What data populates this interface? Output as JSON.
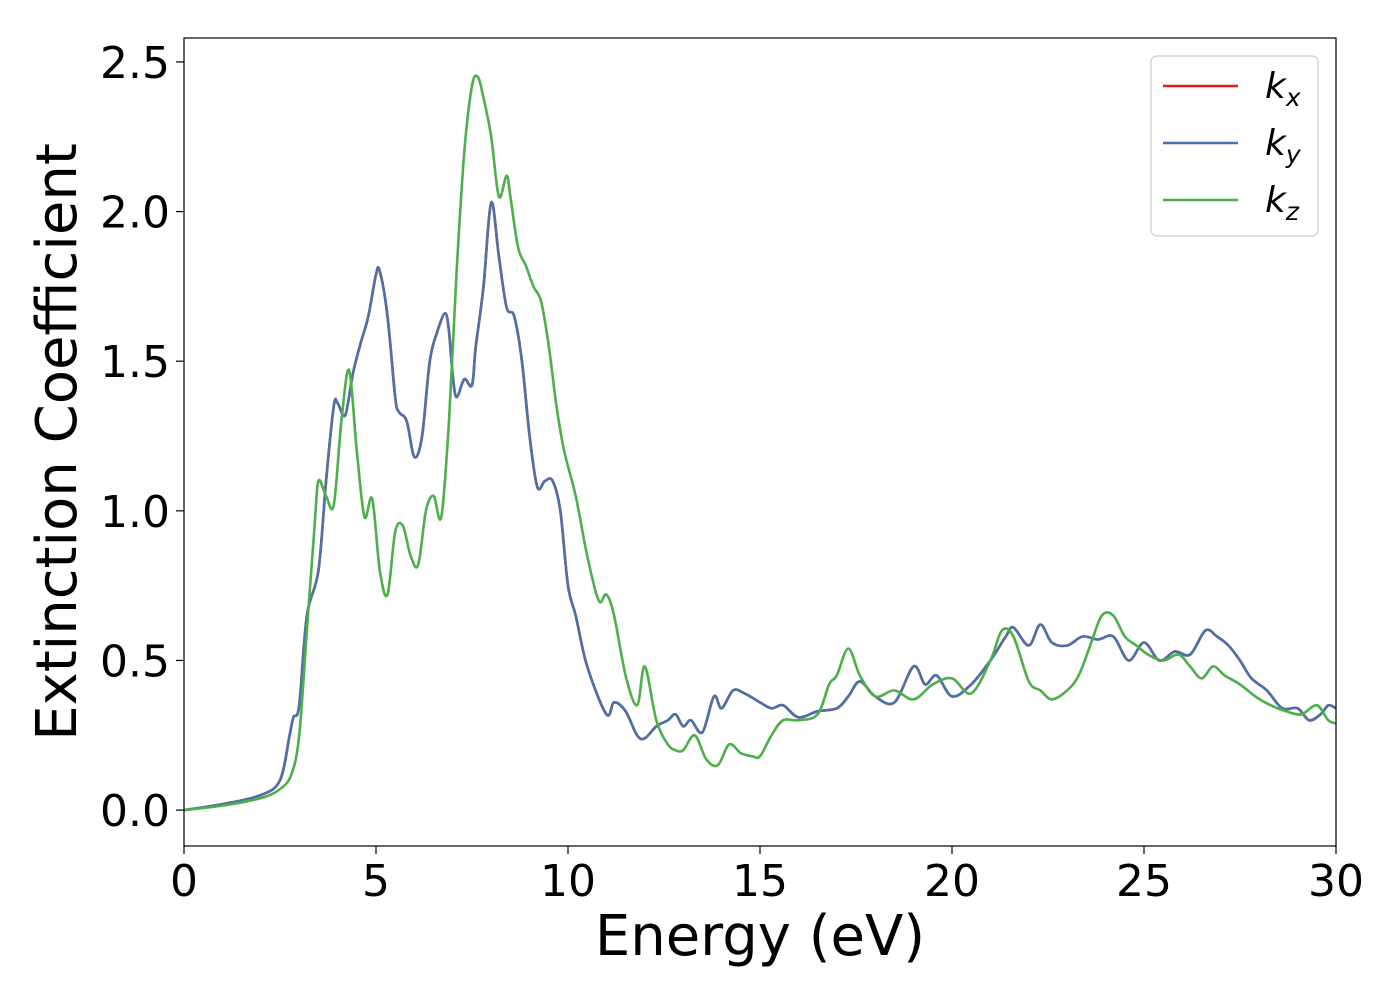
{
  "chart_data": {
    "type": "line",
    "title": "",
    "xlabel": "Energy (eV)",
    "ylabel": "Extinction Coefficient",
    "xlim": [
      0,
      30
    ],
    "ylim": [
      -0.12,
      2.58
    ],
    "xticks": [
      0,
      5,
      10,
      15,
      20,
      25,
      30
    ],
    "xtick_labels": [
      "0",
      "5",
      "10",
      "15",
      "20",
      "25",
      "30"
    ],
    "yticks": [
      0.0,
      0.5,
      1.0,
      1.5,
      2.0,
      2.5
    ],
    "ytick_labels": [
      "0.0",
      "0.5",
      "1.0",
      "1.5",
      "2.0",
      "2.5"
    ],
    "grid": false,
    "legend_position": "top-right",
    "series": [
      {
        "name": "k_x",
        "label_main": "k",
        "label_sub": "x",
        "color": "#e41a1c",
        "x": [
          0,
          1,
          2,
          2.5,
          2.75,
          2.85,
          3.0,
          3.2,
          3.5,
          3.7,
          3.9,
          4.0,
          4.2,
          4.4,
          4.6,
          4.8,
          5.0,
          5.1,
          5.3,
          5.5,
          5.6,
          5.8,
          6.0,
          6.2,
          6.4,
          6.6,
          6.8,
          6.9,
          7.0,
          7.1,
          7.3,
          7.5,
          7.6,
          7.8,
          8.0,
          8.2,
          8.4,
          8.6,
          8.8,
          9.0,
          9.2,
          9.4,
          9.6,
          9.8,
          10.0,
          10.2,
          10.5,
          11.0,
          11.2,
          11.5,
          11.8,
          12.0,
          12.3,
          12.6,
          12.8,
          13.0,
          13.2,
          13.5,
          13.8,
          14.0,
          14.3,
          14.6,
          15.0,
          15.3,
          15.6,
          16.0,
          16.5,
          17.0,
          17.3,
          17.6,
          18.0,
          18.5,
          19.0,
          19.3,
          19.6,
          20.0,
          20.5,
          21.0,
          21.4,
          21.6,
          22.0,
          22.3,
          22.6,
          23.0,
          23.4,
          23.8,
          24.2,
          24.6,
          25.0,
          25.4,
          25.8,
          26.2,
          26.6,
          26.9,
          27.2,
          27.5,
          27.8,
          28.2,
          28.6,
          29.0,
          29.3,
          29.6,
          29.8,
          30.0
        ],
        "y": [
          0.0,
          0.02,
          0.05,
          0.1,
          0.25,
          0.31,
          0.35,
          0.65,
          0.8,
          1.1,
          1.35,
          1.36,
          1.32,
          1.46,
          1.56,
          1.65,
          1.79,
          1.8,
          1.65,
          1.38,
          1.33,
          1.3,
          1.18,
          1.25,
          1.5,
          1.6,
          1.66,
          1.6,
          1.45,
          1.38,
          1.44,
          1.42,
          1.55,
          1.75,
          2.03,
          1.85,
          1.68,
          1.65,
          1.5,
          1.25,
          1.08,
          1.1,
          1.1,
          1.0,
          0.75,
          0.65,
          0.48,
          0.32,
          0.36,
          0.33,
          0.25,
          0.24,
          0.28,
          0.3,
          0.32,
          0.28,
          0.3,
          0.26,
          0.38,
          0.34,
          0.4,
          0.39,
          0.36,
          0.34,
          0.35,
          0.31,
          0.33,
          0.34,
          0.38,
          0.43,
          0.38,
          0.36,
          0.48,
          0.42,
          0.45,
          0.38,
          0.42,
          0.5,
          0.58,
          0.61,
          0.55,
          0.62,
          0.56,
          0.55,
          0.58,
          0.57,
          0.58,
          0.5,
          0.56,
          0.5,
          0.53,
          0.52,
          0.6,
          0.58,
          0.55,
          0.5,
          0.44,
          0.4,
          0.34,
          0.34,
          0.3,
          0.32,
          0.35,
          0.34
        ]
      },
      {
        "name": "k_y",
        "label_main": "k",
        "label_sub": "y",
        "color": "#4a72a8",
        "x": [
          0,
          1,
          2,
          2.5,
          2.75,
          2.85,
          3.0,
          3.2,
          3.5,
          3.7,
          3.9,
          4.0,
          4.2,
          4.4,
          4.6,
          4.8,
          5.0,
          5.1,
          5.3,
          5.5,
          5.6,
          5.8,
          6.0,
          6.2,
          6.4,
          6.6,
          6.8,
          6.9,
          7.0,
          7.1,
          7.3,
          7.5,
          7.6,
          7.8,
          8.0,
          8.2,
          8.4,
          8.6,
          8.8,
          9.0,
          9.2,
          9.4,
          9.6,
          9.8,
          10.0,
          10.2,
          10.5,
          11.0,
          11.2,
          11.5,
          11.8,
          12.0,
          12.3,
          12.6,
          12.8,
          13.0,
          13.2,
          13.5,
          13.8,
          14.0,
          14.3,
          14.6,
          15.0,
          15.3,
          15.6,
          16.0,
          16.5,
          17.0,
          17.3,
          17.6,
          18.0,
          18.5,
          19.0,
          19.3,
          19.6,
          20.0,
          20.5,
          21.0,
          21.4,
          21.6,
          22.0,
          22.3,
          22.6,
          23.0,
          23.4,
          23.8,
          24.2,
          24.6,
          25.0,
          25.4,
          25.8,
          26.2,
          26.6,
          26.9,
          27.2,
          27.5,
          27.8,
          28.2,
          28.6,
          29.0,
          29.3,
          29.6,
          29.8,
          30.0
        ],
        "y": [
          0.0,
          0.02,
          0.05,
          0.1,
          0.25,
          0.31,
          0.35,
          0.65,
          0.8,
          1.1,
          1.35,
          1.36,
          1.32,
          1.46,
          1.56,
          1.65,
          1.79,
          1.8,
          1.65,
          1.38,
          1.33,
          1.3,
          1.18,
          1.25,
          1.5,
          1.6,
          1.66,
          1.6,
          1.45,
          1.38,
          1.44,
          1.42,
          1.55,
          1.75,
          2.03,
          1.85,
          1.68,
          1.65,
          1.5,
          1.25,
          1.08,
          1.1,
          1.1,
          1.0,
          0.75,
          0.65,
          0.48,
          0.32,
          0.36,
          0.33,
          0.25,
          0.24,
          0.28,
          0.3,
          0.32,
          0.28,
          0.3,
          0.26,
          0.38,
          0.34,
          0.4,
          0.39,
          0.36,
          0.34,
          0.35,
          0.31,
          0.33,
          0.34,
          0.38,
          0.43,
          0.38,
          0.36,
          0.48,
          0.42,
          0.45,
          0.38,
          0.42,
          0.5,
          0.58,
          0.61,
          0.55,
          0.62,
          0.56,
          0.55,
          0.58,
          0.57,
          0.58,
          0.5,
          0.56,
          0.5,
          0.53,
          0.52,
          0.6,
          0.58,
          0.55,
          0.5,
          0.44,
          0.4,
          0.34,
          0.34,
          0.3,
          0.32,
          0.35,
          0.34
        ]
      },
      {
        "name": "k_z",
        "label_main": "k",
        "label_sub": "z",
        "color": "#4daf4a",
        "x": [
          0,
          1,
          2,
          2.5,
          2.8,
          3.0,
          3.2,
          3.4,
          3.5,
          3.7,
          3.9,
          4.1,
          4.3,
          4.5,
          4.7,
          4.9,
          5.1,
          5.3,
          5.5,
          5.7,
          5.9,
          6.1,
          6.3,
          6.5,
          6.7,
          6.9,
          7.1,
          7.3,
          7.5,
          7.65,
          7.8,
          8.0,
          8.2,
          8.4,
          8.5,
          8.7,
          8.9,
          9.1,
          9.3,
          9.5,
          9.7,
          9.9,
          10.2,
          10.5,
          10.8,
          11.0,
          11.2,
          11.5,
          11.8,
          12.0,
          12.3,
          12.6,
          12.8,
          13.0,
          13.3,
          13.6,
          13.9,
          14.2,
          14.5,
          14.8,
          15.0,
          15.3,
          15.6,
          16.0,
          16.5,
          16.8,
          17.0,
          17.3,
          17.6,
          18.0,
          18.5,
          19.0,
          19.5,
          20.0,
          20.5,
          21.0,
          21.3,
          21.6,
          22.0,
          22.3,
          22.6,
          23.0,
          23.3,
          23.6,
          23.9,
          24.2,
          24.5,
          24.8,
          25.1,
          25.5,
          25.9,
          26.2,
          26.5,
          26.8,
          27.1,
          27.5,
          27.9,
          28.3,
          28.7,
          29.1,
          29.5,
          29.8,
          30.0
        ],
        "y": [
          0.0,
          0.015,
          0.04,
          0.07,
          0.12,
          0.25,
          0.6,
          0.95,
          1.1,
          1.05,
          1.02,
          1.3,
          1.47,
          1.2,
          0.98,
          1.04,
          0.8,
          0.72,
          0.93,
          0.95,
          0.85,
          0.82,
          1.0,
          1.05,
          0.98,
          1.3,
          1.8,
          2.2,
          2.42,
          2.45,
          2.38,
          2.25,
          2.05,
          2.12,
          2.05,
          1.88,
          1.82,
          1.75,
          1.7,
          1.55,
          1.35,
          1.2,
          1.05,
          0.85,
          0.7,
          0.72,
          0.65,
          0.45,
          0.35,
          0.48,
          0.3,
          0.22,
          0.2,
          0.2,
          0.25,
          0.17,
          0.15,
          0.22,
          0.19,
          0.18,
          0.18,
          0.25,
          0.3,
          0.3,
          0.32,
          0.42,
          0.45,
          0.54,
          0.45,
          0.38,
          0.4,
          0.37,
          0.42,
          0.44,
          0.39,
          0.5,
          0.6,
          0.58,
          0.43,
          0.4,
          0.37,
          0.4,
          0.45,
          0.55,
          0.65,
          0.65,
          0.58,
          0.55,
          0.52,
          0.5,
          0.52,
          0.48,
          0.44,
          0.48,
          0.45,
          0.42,
          0.38,
          0.35,
          0.33,
          0.32,
          0.35,
          0.3,
          0.29
        ]
      }
    ]
  }
}
